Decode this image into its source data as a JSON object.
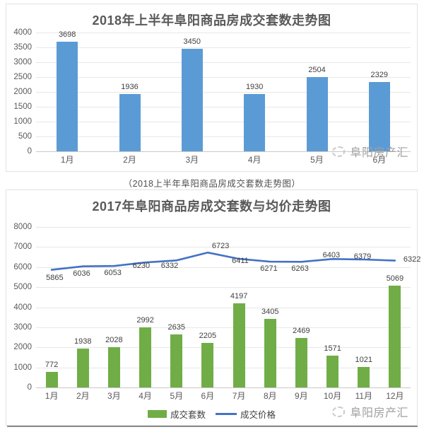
{
  "watermark": {
    "brand": "阜阳房产汇"
  },
  "caption": "（2018上半年阜阳商品房成交套数走势图）",
  "palette": {
    "bar_blue": "#5b9bd5",
    "bar_green": "#70ad47",
    "line_blue": "#4472c4",
    "grid": "#e7e7e7",
    "axis_text": "#595959",
    "title_text": "#595959",
    "watermark_text": "#a0a0a0"
  },
  "chart_data": [
    {
      "type": "bar",
      "title": "2018年上半年阜阳商品房成交套数走势图",
      "categories": [
        "1月",
        "2月",
        "3月",
        "4月",
        "5月",
        "6月"
      ],
      "series": [
        {
          "name": "成交套数",
          "kind": "bar",
          "color": "#5b9bd5",
          "values": [
            3698,
            1936,
            3450,
            1930,
            2504,
            2329
          ]
        }
      ],
      "ylim": [
        0,
        4000
      ],
      "ytick_step": 500,
      "yticks": [
        0,
        500,
        1000,
        1500,
        2000,
        2500,
        3000,
        3500,
        4000
      ],
      "grid": true,
      "legend_position": "none"
    },
    {
      "type": "bar+line",
      "title": "2017年阜阳商品房成交套数与均价走势图",
      "categories": [
        "1月",
        "2月",
        "3月",
        "4月",
        "5月",
        "6月",
        "7月",
        "8月",
        "9月",
        "10月",
        "11月",
        "12月"
      ],
      "series": [
        {
          "name": "成交套数",
          "kind": "bar",
          "color": "#70ad47",
          "values": [
            772,
            1938,
            2028,
            2992,
            2635,
            2205,
            4197,
            3405,
            2469,
            1571,
            1021,
            5069
          ]
        },
        {
          "name": "成交价格",
          "kind": "line",
          "color": "#4472c4",
          "values": [
            5865,
            6036,
            6053,
            6230,
            6332,
            6723,
            6411,
            6271,
            6263,
            6403,
            6379,
            6322
          ]
        }
      ],
      "ylim": [
        0,
        8000
      ],
      "ytick_step": 1000,
      "yticks": [
        0,
        1000,
        2000,
        3000,
        4000,
        5000,
        6000,
        7000,
        8000
      ],
      "grid": true,
      "legend_position": "bottom"
    }
  ]
}
